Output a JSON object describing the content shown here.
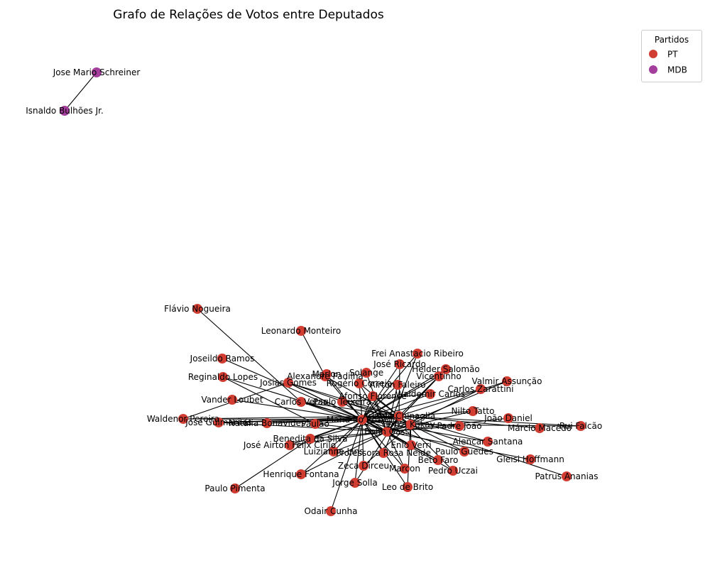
{
  "title": "Grafo de Relações de Votos entre Deputados",
  "legend": {
    "title": "Partidos",
    "items": [
      {
        "label": "PT",
        "color": "#d23d32"
      },
      {
        "label": "MDB",
        "color": "#a33e9c"
      }
    ]
  },
  "colors": {
    "PT": "#d23d32",
    "MDB": "#a33e9c",
    "edge": "#000000"
  },
  "nodes": [
    {
      "id": "Jose Mario Schreiner",
      "party": "MDB"
    },
    {
      "id": "Isnaldo Bulhões Jr.",
      "party": "MDB"
    },
    {
      "id": "Flávio Nogueira",
      "party": "PT"
    },
    {
      "id": "Leonardo Monteiro",
      "party": "PT"
    },
    {
      "id": "Frei Anastacio Ribeiro",
      "party": "PT"
    },
    {
      "id": "José Ricardo",
      "party": "PT"
    },
    {
      "id": "Helder Salomão",
      "party": "PT"
    },
    {
      "id": "Vicentinho",
      "party": "PT"
    },
    {
      "id": "Joseildo Ramos",
      "party": "PT"
    },
    {
      "id": "Marlon",
      "party": "PT"
    },
    {
      "id": "Solange",
      "party": "PT"
    },
    {
      "id": "Alexandre Padilha",
      "party": "PT"
    },
    {
      "id": "Valmir Assunção",
      "party": "PT"
    },
    {
      "id": "Reginaldo Lopes",
      "party": "PT"
    },
    {
      "id": "Josias Gomes",
      "party": "PT"
    },
    {
      "id": "Rogério Correia",
      "party": "PT"
    },
    {
      "id": "Afonso Florence",
      "party": "PT"
    },
    {
      "id": "Carlos Zarattini",
      "party": "PT"
    },
    {
      "id": "Waldemir Carlos",
      "party": "PT"
    },
    {
      "id": "Carlos Veras",
      "party": "PT"
    },
    {
      "id": "Vander Loubet",
      "party": "PT"
    },
    {
      "id": "Nilto Tatto",
      "party": "PT"
    },
    {
      "id": "Waldenor Pereira",
      "party": "PT"
    },
    {
      "id": "José Guimarães",
      "party": "PT"
    },
    {
      "id": "Natália Bonavides",
      "party": "PT"
    },
    {
      "id": "João Daniel",
      "party": "PT"
    },
    {
      "id": "Rui Falcão",
      "party": "PT"
    },
    {
      "id": "Márcio Macêdo",
      "party": "PT"
    },
    {
      "id": "Paulão",
      "party": "PT"
    },
    {
      "id": "Airton Faleiro",
      "party": "PT"
    },
    {
      "id": "Erika Kokay",
      "party": "PT"
    },
    {
      "id": "Padre João",
      "party": "PT"
    },
    {
      "id": "Alencar Santana",
      "party": "PT"
    },
    {
      "id": "Benedita da Silva",
      "party": "PT"
    },
    {
      "id": "José Airton Félix Cirilo",
      "party": "PT"
    },
    {
      "id": "Paulo Teixeira",
      "party": "PT"
    },
    {
      "id": "Enio Verri",
      "party": "PT"
    },
    {
      "id": "Luizianne Lins",
      "party": "PT"
    },
    {
      "id": "Paulo Guedes",
      "party": "PT"
    },
    {
      "id": "Professora Rosa Neide",
      "party": "PT"
    },
    {
      "id": "Beto Faro",
      "party": "PT"
    },
    {
      "id": "Gleisi Hoffmann",
      "party": "PT"
    },
    {
      "id": "Zeca Dirceu",
      "party": "PT"
    },
    {
      "id": "Marcon",
      "party": "PT"
    },
    {
      "id": "Pedro Uczai",
      "party": "PT"
    },
    {
      "id": "Henrique Fontana",
      "party": "PT"
    },
    {
      "id": "Patrus Ananias",
      "party": "PT"
    },
    {
      "id": "Jorge Solla",
      "party": "PT"
    },
    {
      "id": "Leo de Brito",
      "party": "PT"
    },
    {
      "id": "Paulo Pimenta",
      "party": "PT"
    },
    {
      "id": "Odair Cunha",
      "party": "PT"
    },
    {
      "id": "Arlindo Chinaglia",
      "party": "PT"
    },
    {
      "id": "Maria do Rosário",
      "party": "PT"
    },
    {
      "id": "Bohn Gass",
      "party": "PT"
    }
  ],
  "edges": [
    [
      "Jose Mario Schreiner",
      "Isnaldo Bulhões Jr."
    ],
    [
      "Flávio Nogueira",
      "Carlos Veras"
    ],
    [
      "Leonardo Monteiro",
      "Alexandre Padilha"
    ],
    [
      "Joseildo Ramos",
      "Maria do Rosário"
    ],
    [
      "Reginaldo Lopes",
      "Maria do Rosário"
    ],
    [
      "Reginaldo Lopes",
      "Paulão"
    ],
    [
      "Vander Loubet",
      "Maria do Rosário"
    ],
    [
      "Waldenor Pereira",
      "Maria do Rosário"
    ],
    [
      "Waldenor Pereira",
      "Josias Gomes"
    ],
    [
      "José Guimarães",
      "Arlindo Chinaglia"
    ],
    [
      "José Guimarães",
      "Bohn Gass"
    ],
    [
      "Paulo Pimenta",
      "Benedita da Silva"
    ],
    [
      "Odair Cunha",
      "Maria do Rosário"
    ],
    [
      "Patrus Ananias",
      "Erika Kokay"
    ],
    [
      "Gleisi Hoffmann",
      "Bohn Gass"
    ],
    [
      "Rui Falcão",
      "Erika Kokay"
    ],
    [
      "Rui Falcão",
      "Arlindo Chinaglia"
    ],
    [
      "Márcio Macêdo",
      "Arlindo Chinaglia"
    ],
    [
      "João Daniel",
      "Bohn Gass"
    ],
    [
      "Frei Anastacio Ribeiro",
      "Maria do Rosário"
    ],
    [
      "Frei Anastacio Ribeiro",
      "Bohn Gass"
    ],
    [
      "José Ricardo",
      "Maria do Rosário"
    ],
    [
      "José Ricardo",
      "Arlindo Chinaglia"
    ],
    [
      "Helder Salomão",
      "Maria do Rosário"
    ],
    [
      "Helder Salomão",
      "Arlindo Chinaglia"
    ],
    [
      "Helder Salomão",
      "Bohn Gass"
    ],
    [
      "Vicentinho",
      "Maria do Rosário"
    ],
    [
      "Vicentinho",
      "Bohn Gass"
    ],
    [
      "Valmir Assunção",
      "Arlindo Chinaglia"
    ],
    [
      "Valmir Assunção",
      "Bohn Gass"
    ],
    [
      "Carlos Zarattini",
      "Maria do Rosário"
    ],
    [
      "Carlos Zarattini",
      "Erika Kokay"
    ],
    [
      "Nilto Tatto",
      "Maria do Rosário"
    ],
    [
      "Nilto Tatto",
      "Bohn Gass"
    ],
    [
      "Marlon",
      "Maria do Rosário"
    ],
    [
      "Solange",
      "Bohn Gass"
    ],
    [
      "Alexandre Padilha",
      "Maria do Rosário"
    ],
    [
      "Alexandre Padilha",
      "Erika Kokay"
    ],
    [
      "Josias Gomes",
      "Maria do Rosário"
    ],
    [
      "Josias Gomes",
      "Arlindo Chinaglia"
    ],
    [
      "Josias Gomes",
      "Bohn Gass"
    ],
    [
      "Rogério Correia",
      "Maria do Rosário"
    ],
    [
      "Rogério Correia",
      "Bohn Gass"
    ],
    [
      "Afonso Florence",
      "Maria do Rosário"
    ],
    [
      "Afonso Florence",
      "Erika Kokay"
    ],
    [
      "Waldemir Carlos",
      "Maria do Rosário"
    ],
    [
      "Waldemir Carlos",
      "Paulo Teixeira"
    ],
    [
      "Carlos Veras",
      "Maria do Rosário"
    ],
    [
      "Carlos Veras",
      "Bohn Gass"
    ],
    [
      "Airton Faleiro",
      "Maria do Rosário"
    ],
    [
      "Airton Faleiro",
      "Bohn Gass"
    ],
    [
      "Natália Bonavides",
      "Maria do Rosário"
    ],
    [
      "Natália Bonavides",
      "Arlindo Chinaglia"
    ],
    [
      "Paulão",
      "Maria do Rosário"
    ],
    [
      "Paulão",
      "Bohn Gass"
    ],
    [
      "Padre João",
      "Maria do Rosário"
    ],
    [
      "Padre João",
      "Bohn Gass"
    ],
    [
      "Alencar Santana",
      "Maria do Rosário"
    ],
    [
      "Alencar Santana",
      "Arlindo Chinaglia"
    ],
    [
      "Benedita da Silva",
      "Maria do Rosário"
    ],
    [
      "Benedita da Silva",
      "Arlindo Chinaglia"
    ],
    [
      "José Airton Félix Cirilo",
      "Maria do Rosário"
    ],
    [
      "José Airton Félix Cirilo",
      "Bohn Gass"
    ],
    [
      "Enio Verri",
      "Maria do Rosário"
    ],
    [
      "Enio Verri",
      "Erika Kokay"
    ],
    [
      "Luizianne Lins",
      "Maria do Rosário"
    ],
    [
      "Luizianne Lins",
      "Bohn Gass"
    ],
    [
      "Paulo Guedes",
      "Maria do Rosário"
    ],
    [
      "Paulo Guedes",
      "Erika Kokay"
    ],
    [
      "Professora Rosa Neide",
      "Maria do Rosário"
    ],
    [
      "Professora Rosa Neide",
      "Arlindo Chinaglia"
    ],
    [
      "Beto Faro",
      "Maria do Rosário"
    ],
    [
      "Beto Faro",
      "Bohn Gass"
    ],
    [
      "Zeca Dirceu",
      "Maria do Rosário"
    ],
    [
      "Zeca Dirceu",
      "Erika Kokay"
    ],
    [
      "Marcon",
      "Maria do Rosário"
    ],
    [
      "Marcon",
      "Bohn Gass"
    ],
    [
      "Pedro Uczai",
      "Maria do Rosário"
    ],
    [
      "Pedro Uczai",
      "Arlindo Chinaglia"
    ],
    [
      "Henrique Fontana",
      "Maria do Rosário"
    ],
    [
      "Henrique Fontana",
      "Bohn Gass"
    ],
    [
      "Jorge Solla",
      "Maria do Rosário"
    ],
    [
      "Jorge Solla",
      "Arlindo Chinaglia"
    ],
    [
      "Leo de Brito",
      "Maria do Rosário"
    ],
    [
      "Leo de Brito",
      "Erika Kokay"
    ],
    [
      "Maria do Rosário",
      "Arlindo Chinaglia"
    ],
    [
      "Maria do Rosário",
      "Bohn Gass"
    ],
    [
      "Maria do Rosário",
      "Erika Kokay"
    ],
    [
      "Arlindo Chinaglia",
      "Bohn Gass"
    ],
    [
      "Erika Kokay",
      "Bohn Gass"
    ],
    [
      "Paulo Teixeira",
      "Bohn Gass"
    ],
    [
      "Paulo Teixeira",
      "Arlindo Chinaglia"
    ],
    [
      "Carlos Veras",
      "Arlindo Chinaglia"
    ],
    [
      "Josias Gomes",
      "Erika Kokay"
    ],
    [
      "José Guimarães",
      "Maria do Rosário"
    ],
    [
      "Waldenor Pereira",
      "Arlindo Chinaglia"
    ],
    [
      "Rogério Correia",
      "Arlindo Chinaglia"
    ],
    [
      "Afonso Florence",
      "Bohn Gass"
    ],
    [
      "Benedita da Silva",
      "Bohn Gass"
    ],
    [
      "Enio Verri",
      "Bohn Gass"
    ]
  ]
}
